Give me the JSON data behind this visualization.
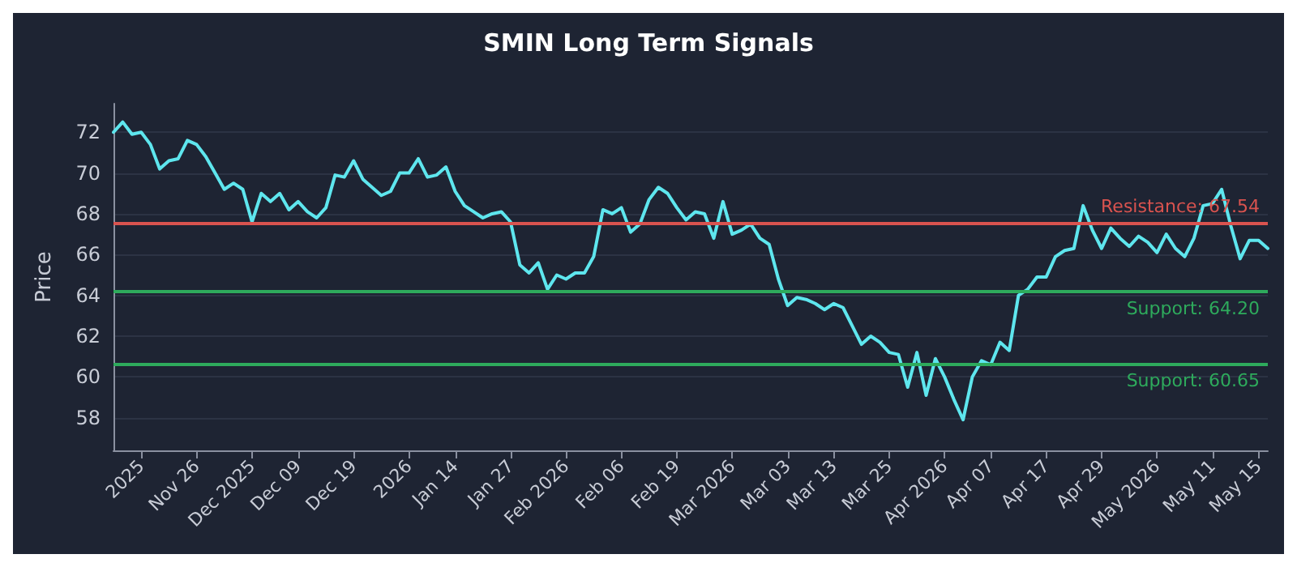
{
  "chart_data": {
    "type": "line",
    "title": "SMIN Long Term Signals",
    "ylabel": "Price",
    "categories": [
      null,
      null,
      null,
      "2025",
      null,
      null,
      null,
      null,
      null,
      "Nov 26",
      null,
      null,
      null,
      null,
      null,
      "Dec 2025",
      null,
      null,
      null,
      null,
      "Dec 09",
      null,
      null,
      null,
      null,
      null,
      "Dec 19",
      null,
      null,
      null,
      null,
      null,
      "2026",
      null,
      null,
      null,
      null,
      "Jan 14",
      null,
      null,
      null,
      null,
      null,
      "Jan 27",
      null,
      null,
      null,
      null,
      null,
      "Feb 2026",
      null,
      null,
      null,
      null,
      null,
      "Feb 06",
      null,
      null,
      null,
      null,
      null,
      "Feb 19",
      null,
      null,
      null,
      null,
      null,
      "Mar 2026",
      null,
      null,
      null,
      null,
      null,
      "Mar 03",
      null,
      null,
      null,
      null,
      "Mar 13",
      null,
      null,
      null,
      null,
      null,
      "Mar 25",
      null,
      null,
      null,
      null,
      null,
      "Apr 2026",
      null,
      null,
      null,
      null,
      "Apr 07",
      null,
      null,
      null,
      null,
      null,
      "Apr 17",
      null,
      null,
      null,
      null,
      null,
      "Apr 29",
      null,
      null,
      null,
      null,
      null,
      "May 2026",
      null,
      null,
      null,
      null,
      null,
      "May 11",
      null,
      null,
      null,
      null,
      "May 15",
      null
    ],
    "series": [
      {
        "color": "#5ee6ee",
        "values": [
          72.0,
          72.5,
          71.9,
          72.0,
          71.4,
          70.2,
          70.6,
          70.7,
          71.6,
          71.4,
          70.8,
          70.0,
          69.2,
          69.5,
          69.2,
          67.6,
          69.0,
          68.6,
          69.0,
          68.2,
          68.6,
          68.1,
          67.8,
          68.3,
          69.9,
          69.8,
          70.6,
          69.7,
          69.3,
          68.9,
          69.1,
          70.0,
          70.0,
          70.7,
          69.8,
          69.9,
          70.3,
          69.1,
          68.4,
          68.1,
          67.8,
          68.0,
          68.1,
          67.6,
          65.5,
          65.1,
          65.6,
          64.3,
          65.0,
          64.8,
          65.1,
          65.1,
          65.9,
          68.2,
          68.0,
          68.3,
          67.1,
          67.5,
          68.7,
          69.3,
          69.0,
          68.3,
          67.7,
          68.1,
          68.0,
          66.8,
          68.6,
          67.0,
          67.2,
          67.5,
          66.8,
          66.5,
          64.8,
          63.5,
          63.9,
          63.8,
          63.6,
          63.3,
          63.6,
          63.4,
          62.5,
          61.6,
          62.0,
          61.7,
          61.2,
          61.1,
          59.5,
          61.2,
          59.1,
          60.9,
          60.0,
          58.9,
          57.9,
          60.0,
          60.8,
          60.6,
          61.7,
          61.3,
          64.0,
          64.3,
          64.9,
          64.9,
          65.9,
          66.2,
          66.3,
          68.4,
          67.2,
          66.3,
          67.3,
          66.8,
          66.4,
          66.9,
          66.6,
          66.1,
          67.0,
          66.3,
          65.9,
          66.8,
          68.4,
          68.5,
          69.2,
          67.4,
          65.8,
          66.7,
          66.7,
          66.3
        ]
      }
    ],
    "ylim": [
      56.4,
      73.4
    ],
    "yticks": [
      58,
      60,
      62,
      64,
      66,
      68,
      70,
      72
    ],
    "grid": "y",
    "marker": "none",
    "line_style": "solid",
    "ref_lines": [
      {
        "axis": "y",
        "value": 67.54,
        "label": "Resistance: 67.54",
        "color": "#d9534f"
      },
      {
        "axis": "y",
        "value": 64.2,
        "label": "Support: 64.20",
        "color": "#2eaa5c"
      },
      {
        "axis": "y",
        "value": 60.65,
        "label": "Support: 60.65",
        "color": "#2eaa5c"
      }
    ]
  }
}
